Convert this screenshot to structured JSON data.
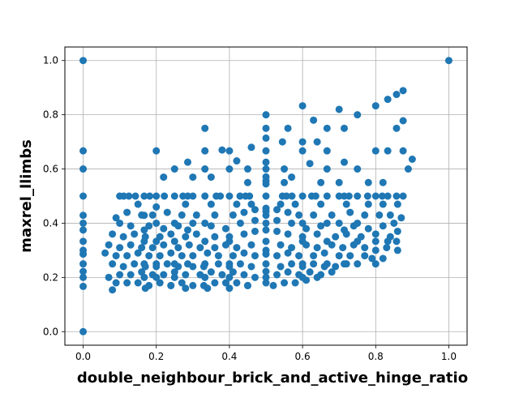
{
  "chart_data": {
    "type": "scatter",
    "title": "",
    "xlabel": "double_neighbour_brick_and_active_hinge_ratio",
    "ylabel": "maxrel_llimbs",
    "xlim": [
      -0.05,
      1.05
    ],
    "ylim": [
      -0.05,
      1.05
    ],
    "xticks": [
      0.0,
      0.2,
      0.4,
      0.6,
      0.8,
      1.0
    ],
    "yticks": [
      0.0,
      0.2,
      0.4,
      0.6,
      0.8,
      1.0
    ],
    "xtick_labels": [
      "0.0",
      "0.2",
      "0.4",
      "0.6",
      "0.8",
      "1.0"
    ],
    "ytick_labels": [
      "0.0",
      "0.2",
      "0.4",
      "0.6",
      "0.8",
      "1.0"
    ],
    "grid": true,
    "marker_color": "#1f77b4",
    "points": [
      [
        0.0,
        1.0
      ],
      [
        0.0,
        0.0
      ],
      [
        0.0,
        0.667
      ],
      [
        0.0,
        0.6
      ],
      [
        0.0,
        0.5
      ],
      [
        0.0,
        0.429
      ],
      [
        0.0,
        0.4
      ],
      [
        0.0,
        0.375
      ],
      [
        0.0,
        0.333
      ],
      [
        0.0,
        0.3
      ],
      [
        0.0,
        0.286
      ],
      [
        0.0,
        0.25
      ],
      [
        0.0,
        0.222
      ],
      [
        0.0,
        0.2
      ],
      [
        0.0,
        0.167
      ],
      [
        1.0,
        1.0
      ],
      [
        0.5,
        0.8
      ],
      [
        0.5,
        0.75
      ],
      [
        0.5,
        0.714
      ],
      [
        0.5,
        0.667
      ],
      [
        0.5,
        0.625
      ],
      [
        0.5,
        0.6
      ],
      [
        0.5,
        0.571
      ],
      [
        0.5,
        0.556
      ],
      [
        0.5,
        0.545
      ],
      [
        0.5,
        0.5
      ],
      [
        0.5,
        0.455
      ],
      [
        0.5,
        0.444
      ],
      [
        0.5,
        0.429
      ],
      [
        0.5,
        0.4
      ],
      [
        0.5,
        0.375
      ],
      [
        0.5,
        0.333
      ],
      [
        0.5,
        0.3
      ],
      [
        0.5,
        0.286
      ],
      [
        0.5,
        0.25
      ],
      [
        0.5,
        0.222
      ],
      [
        0.5,
        0.2
      ],
      [
        0.333,
        0.75
      ],
      [
        0.333,
        0.667
      ],
      [
        0.333,
        0.6
      ],
      [
        0.333,
        0.5
      ],
      [
        0.333,
        0.4
      ],
      [
        0.333,
        0.333
      ],
      [
        0.333,
        0.25
      ],
      [
        0.333,
        0.2
      ],
      [
        0.167,
        0.5
      ],
      [
        0.167,
        0.429
      ],
      [
        0.167,
        0.375
      ],
      [
        0.167,
        0.333
      ],
      [
        0.167,
        0.25
      ],
      [
        0.167,
        0.2
      ],
      [
        0.2,
        0.667
      ],
      [
        0.2,
        0.5
      ],
      [
        0.2,
        0.4
      ],
      [
        0.2,
        0.333
      ],
      [
        0.2,
        0.25
      ],
      [
        0.2,
        0.2
      ],
      [
        0.25,
        0.6
      ],
      [
        0.25,
        0.5
      ],
      [
        0.25,
        0.4
      ],
      [
        0.25,
        0.333
      ],
      [
        0.25,
        0.25
      ],
      [
        0.25,
        0.2
      ],
      [
        0.286,
        0.625
      ],
      [
        0.286,
        0.5
      ],
      [
        0.286,
        0.375
      ],
      [
        0.286,
        0.25
      ],
      [
        0.4,
        0.667
      ],
      [
        0.4,
        0.5
      ],
      [
        0.4,
        0.333
      ],
      [
        0.4,
        0.25
      ],
      [
        0.4,
        0.2
      ],
      [
        0.6,
        0.833
      ],
      [
        0.6,
        0.667
      ],
      [
        0.6,
        0.5
      ],
      [
        0.6,
        0.4
      ],
      [
        0.6,
        0.333
      ],
      [
        0.6,
        0.25
      ],
      [
        0.6,
        0.2
      ],
      [
        0.667,
        0.75
      ],
      [
        0.667,
        0.667
      ],
      [
        0.667,
        0.6
      ],
      [
        0.667,
        0.5
      ],
      [
        0.667,
        0.4
      ],
      [
        0.667,
        0.333
      ],
      [
        0.667,
        0.25
      ],
      [
        0.714,
        0.75
      ],
      [
        0.714,
        0.625
      ],
      [
        0.714,
        0.5
      ],
      [
        0.714,
        0.375
      ],
      [
        0.714,
        0.25
      ],
      [
        0.75,
        0.8
      ],
      [
        0.75,
        0.6
      ],
      [
        0.75,
        0.5
      ],
      [
        0.75,
        0.4
      ],
      [
        0.75,
        0.333
      ],
      [
        0.75,
        0.25
      ],
      [
        0.8,
        0.833
      ],
      [
        0.8,
        0.667
      ],
      [
        0.8,
        0.5
      ],
      [
        0.8,
        0.333
      ],
      [
        0.8,
        0.25
      ],
      [
        0.833,
        0.857
      ],
      [
        0.833,
        0.667
      ],
      [
        0.833,
        0.5
      ],
      [
        0.833,
        0.333
      ],
      [
        0.857,
        0.875
      ],
      [
        0.857,
        0.75
      ],
      [
        0.857,
        0.5
      ],
      [
        0.857,
        0.333
      ],
      [
        0.875,
        0.889
      ],
      [
        0.875,
        0.778
      ],
      [
        0.875,
        0.667
      ],
      [
        0.875,
        0.5
      ],
      [
        0.889,
        0.6
      ],
      [
        0.9,
        0.636
      ],
      [
        0.7,
        0.82
      ],
      [
        0.63,
        0.78
      ],
      [
        0.56,
        0.75
      ],
      [
        0.545,
        0.7
      ],
      [
        0.6,
        0.7
      ],
      [
        0.64,
        0.7
      ],
      [
        0.46,
        0.68
      ],
      [
        0.38,
        0.67
      ],
      [
        0.42,
        0.63
      ],
      [
        0.4,
        0.6
      ],
      [
        0.45,
        0.6
      ],
      [
        0.55,
        0.6
      ],
      [
        0.62,
        0.62
      ],
      [
        0.57,
        0.57
      ],
      [
        0.35,
        0.57
      ],
      [
        0.3,
        0.57
      ],
      [
        0.22,
        0.57
      ],
      [
        0.45,
        0.55
      ],
      [
        0.55,
        0.55
      ],
      [
        0.65,
        0.55
      ],
      [
        0.7,
        0.55
      ],
      [
        0.78,
        0.55
      ],
      [
        0.82,
        0.55
      ],
      [
        0.125,
        0.5
      ],
      [
        0.1,
        0.5
      ],
      [
        0.143,
        0.5
      ],
      [
        0.111,
        0.5
      ],
      [
        0.182,
        0.5
      ],
      [
        0.222,
        0.5
      ],
      [
        0.273,
        0.5
      ],
      [
        0.3,
        0.5
      ],
      [
        0.364,
        0.5
      ],
      [
        0.375,
        0.5
      ],
      [
        0.429,
        0.5
      ],
      [
        0.444,
        0.5
      ],
      [
        0.455,
        0.5
      ],
      [
        0.545,
        0.5
      ],
      [
        0.556,
        0.5
      ],
      [
        0.571,
        0.5
      ],
      [
        0.625,
        0.5
      ],
      [
        0.636,
        0.5
      ],
      [
        0.7,
        0.5
      ],
      [
        0.727,
        0.5
      ],
      [
        0.778,
        0.5
      ],
      [
        0.818,
        0.5
      ],
      [
        0.15,
        0.47
      ],
      [
        0.2,
        0.46
      ],
      [
        0.28,
        0.47
      ],
      [
        0.35,
        0.47
      ],
      [
        0.42,
        0.47
      ],
      [
        0.46,
        0.47
      ],
      [
        0.54,
        0.47
      ],
      [
        0.58,
        0.47
      ],
      [
        0.65,
        0.47
      ],
      [
        0.72,
        0.47
      ],
      [
        0.78,
        0.47
      ],
      [
        0.82,
        0.47
      ],
      [
        0.86,
        0.47
      ],
      [
        0.09,
        0.42
      ],
      [
        0.12,
        0.44
      ],
      [
        0.16,
        0.43
      ],
      [
        0.19,
        0.43
      ],
      [
        0.23,
        0.44
      ],
      [
        0.27,
        0.43
      ],
      [
        0.31,
        0.43
      ],
      [
        0.36,
        0.43
      ],
      [
        0.41,
        0.43
      ],
      [
        0.44,
        0.44
      ],
      [
        0.47,
        0.45
      ],
      [
        0.53,
        0.45
      ],
      [
        0.56,
        0.44
      ],
      [
        0.59,
        0.43
      ],
      [
        0.63,
        0.43
      ],
      [
        0.68,
        0.43
      ],
      [
        0.73,
        0.44
      ],
      [
        0.77,
        0.43
      ],
      [
        0.81,
        0.43
      ],
      [
        0.84,
        0.43
      ],
      [
        0.87,
        0.42
      ],
      [
        0.1,
        0.4
      ],
      [
        0.13,
        0.39
      ],
      [
        0.18,
        0.39
      ],
      [
        0.22,
        0.38
      ],
      [
        0.26,
        0.39
      ],
      [
        0.3,
        0.4
      ],
      [
        0.35,
        0.39
      ],
      [
        0.39,
        0.38
      ],
      [
        0.43,
        0.4
      ],
      [
        0.47,
        0.41
      ],
      [
        0.53,
        0.41
      ],
      [
        0.57,
        0.4
      ],
      [
        0.61,
        0.38
      ],
      [
        0.65,
        0.39
      ],
      [
        0.7,
        0.4
      ],
      [
        0.74,
        0.39
      ],
      [
        0.78,
        0.38
      ],
      [
        0.82,
        0.39
      ],
      [
        0.85,
        0.4
      ],
      [
        0.08,
        0.36
      ],
      [
        0.11,
        0.35
      ],
      [
        0.14,
        0.36
      ],
      [
        0.17,
        0.35
      ],
      [
        0.21,
        0.35
      ],
      [
        0.24,
        0.36
      ],
      [
        0.28,
        0.35
      ],
      [
        0.31,
        0.36
      ],
      [
        0.36,
        0.35
      ],
      [
        0.4,
        0.35
      ],
      [
        0.44,
        0.36
      ],
      [
        0.47,
        0.37
      ],
      [
        0.53,
        0.37
      ],
      [
        0.56,
        0.36
      ],
      [
        0.6,
        0.35
      ],
      [
        0.64,
        0.36
      ],
      [
        0.69,
        0.35
      ],
      [
        0.72,
        0.36
      ],
      [
        0.76,
        0.35
      ],
      [
        0.8,
        0.36
      ],
      [
        0.84,
        0.35
      ],
      [
        0.86,
        0.37
      ],
      [
        0.07,
        0.32
      ],
      [
        0.1,
        0.31
      ],
      [
        0.13,
        0.32
      ],
      [
        0.16,
        0.31
      ],
      [
        0.19,
        0.31
      ],
      [
        0.22,
        0.32
      ],
      [
        0.26,
        0.31
      ],
      [
        0.29,
        0.32
      ],
      [
        0.32,
        0.31
      ],
      [
        0.36,
        0.31
      ],
      [
        0.39,
        0.32
      ],
      [
        0.42,
        0.31
      ],
      [
        0.46,
        0.32
      ],
      [
        0.54,
        0.32
      ],
      [
        0.57,
        0.31
      ],
      [
        0.61,
        0.32
      ],
      [
        0.64,
        0.31
      ],
      [
        0.68,
        0.32
      ],
      [
        0.71,
        0.31
      ],
      [
        0.74,
        0.32
      ],
      [
        0.77,
        0.31
      ],
      [
        0.8,
        0.3
      ],
      [
        0.83,
        0.31
      ],
      [
        0.86,
        0.3
      ],
      [
        0.06,
        0.29
      ],
      [
        0.09,
        0.28
      ],
      [
        0.12,
        0.28
      ],
      [
        0.15,
        0.29
      ],
      [
        0.18,
        0.28
      ],
      [
        0.21,
        0.28
      ],
      [
        0.24,
        0.29
      ],
      [
        0.27,
        0.28
      ],
      [
        0.3,
        0.28
      ],
      [
        0.34,
        0.29
      ],
      [
        0.37,
        0.28
      ],
      [
        0.41,
        0.28
      ],
      [
        0.44,
        0.29
      ],
      [
        0.47,
        0.28
      ],
      [
        0.53,
        0.28
      ],
      [
        0.56,
        0.29
      ],
      [
        0.59,
        0.28
      ],
      [
        0.63,
        0.28
      ],
      [
        0.66,
        0.29
      ],
      [
        0.7,
        0.28
      ],
      [
        0.73,
        0.28
      ],
      [
        0.77,
        0.28
      ],
      [
        0.79,
        0.27
      ],
      [
        0.82,
        0.27
      ],
      [
        0.08,
        0.25
      ],
      [
        0.11,
        0.24
      ],
      [
        0.14,
        0.25
      ],
      [
        0.17,
        0.24
      ],
      [
        0.2,
        0.24
      ],
      [
        0.23,
        0.25
      ],
      [
        0.26,
        0.24
      ],
      [
        0.3,
        0.24
      ],
      [
        0.33,
        0.24
      ],
      [
        0.37,
        0.25
      ],
      [
        0.4,
        0.24
      ],
      [
        0.43,
        0.25
      ],
      [
        0.46,
        0.24
      ],
      [
        0.54,
        0.24
      ],
      [
        0.57,
        0.25
      ],
      [
        0.6,
        0.24
      ],
      [
        0.63,
        0.25
      ],
      [
        0.66,
        0.24
      ],
      [
        0.69,
        0.24
      ],
      [
        0.72,
        0.25
      ],
      [
        0.07,
        0.2
      ],
      [
        0.1,
        0.21
      ],
      [
        0.13,
        0.21
      ],
      [
        0.16,
        0.22
      ],
      [
        0.19,
        0.21
      ],
      [
        0.22,
        0.21
      ],
      [
        0.25,
        0.22
      ],
      [
        0.28,
        0.21
      ],
      [
        0.32,
        0.21
      ],
      [
        0.35,
        0.22
      ],
      [
        0.38,
        0.21
      ],
      [
        0.41,
        0.22
      ],
      [
        0.44,
        0.21
      ],
      [
        0.47,
        0.2
      ],
      [
        0.53,
        0.21
      ],
      [
        0.56,
        0.22
      ],
      [
        0.59,
        0.21
      ],
      [
        0.62,
        0.22
      ],
      [
        0.65,
        0.21
      ],
      [
        0.68,
        0.22
      ],
      [
        0.09,
        0.18
      ],
      [
        0.12,
        0.18
      ],
      [
        0.15,
        0.18
      ],
      [
        0.18,
        0.17
      ],
      [
        0.21,
        0.18
      ],
      [
        0.24,
        0.17
      ],
      [
        0.27,
        0.18
      ],
      [
        0.3,
        0.17
      ],
      [
        0.33,
        0.17
      ],
      [
        0.36,
        0.18
      ],
      [
        0.39,
        0.18
      ],
      [
        0.42,
        0.18
      ],
      [
        0.45,
        0.17
      ],
      [
        0.52,
        0.17
      ],
      [
        0.55,
        0.18
      ],
      [
        0.58,
        0.18
      ],
      [
        0.61,
        0.19
      ],
      [
        0.64,
        0.2
      ],
      [
        0.08,
        0.154
      ],
      [
        0.17,
        0.16
      ],
      [
        0.24,
        0.17
      ],
      [
        0.28,
        0.16
      ],
      [
        0.34,
        0.16
      ],
      [
        0.4,
        0.16
      ],
      [
        0.45,
        0.17
      ],
      [
        0.5,
        0.18
      ]
    ]
  }
}
